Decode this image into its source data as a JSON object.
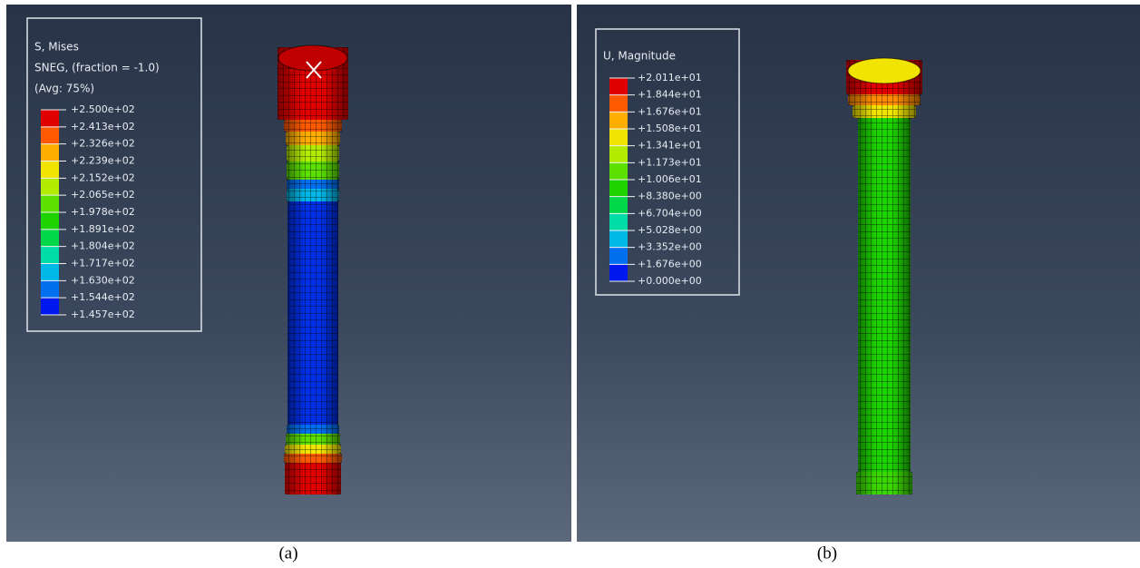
{
  "panels": [
    {
      "legend": {
        "title": [
          "S, Mises",
          "SNEG, (fraction = -1.0)",
          "(Avg: 75%)"
        ],
        "levels": [
          "+2.500e+02",
          "+2.413e+02",
          "+2.326e+02",
          "+2.239e+02",
          "+2.152e+02",
          "+2.065e+02",
          "+1.978e+02",
          "+1.891e+02",
          "+1.804e+02",
          "+1.717e+02",
          "+1.630e+02",
          "+1.544e+02",
          "+1.457e+02"
        ]
      },
      "caption": "(a)"
    },
    {
      "legend": {
        "title": [
          "U, Magnitude"
        ],
        "levels": [
          "+2.011e+01",
          "+1.844e+01",
          "+1.676e+01",
          "+1.508e+01",
          "+1.341e+01",
          "+1.173e+01",
          "+1.006e+01",
          "+8.380e+00",
          "+6.704e+00",
          "+5.028e+00",
          "+3.352e+00",
          "+1.676e+00",
          "+0.000e+00"
        ]
      },
      "caption": "(b)"
    }
  ]
}
